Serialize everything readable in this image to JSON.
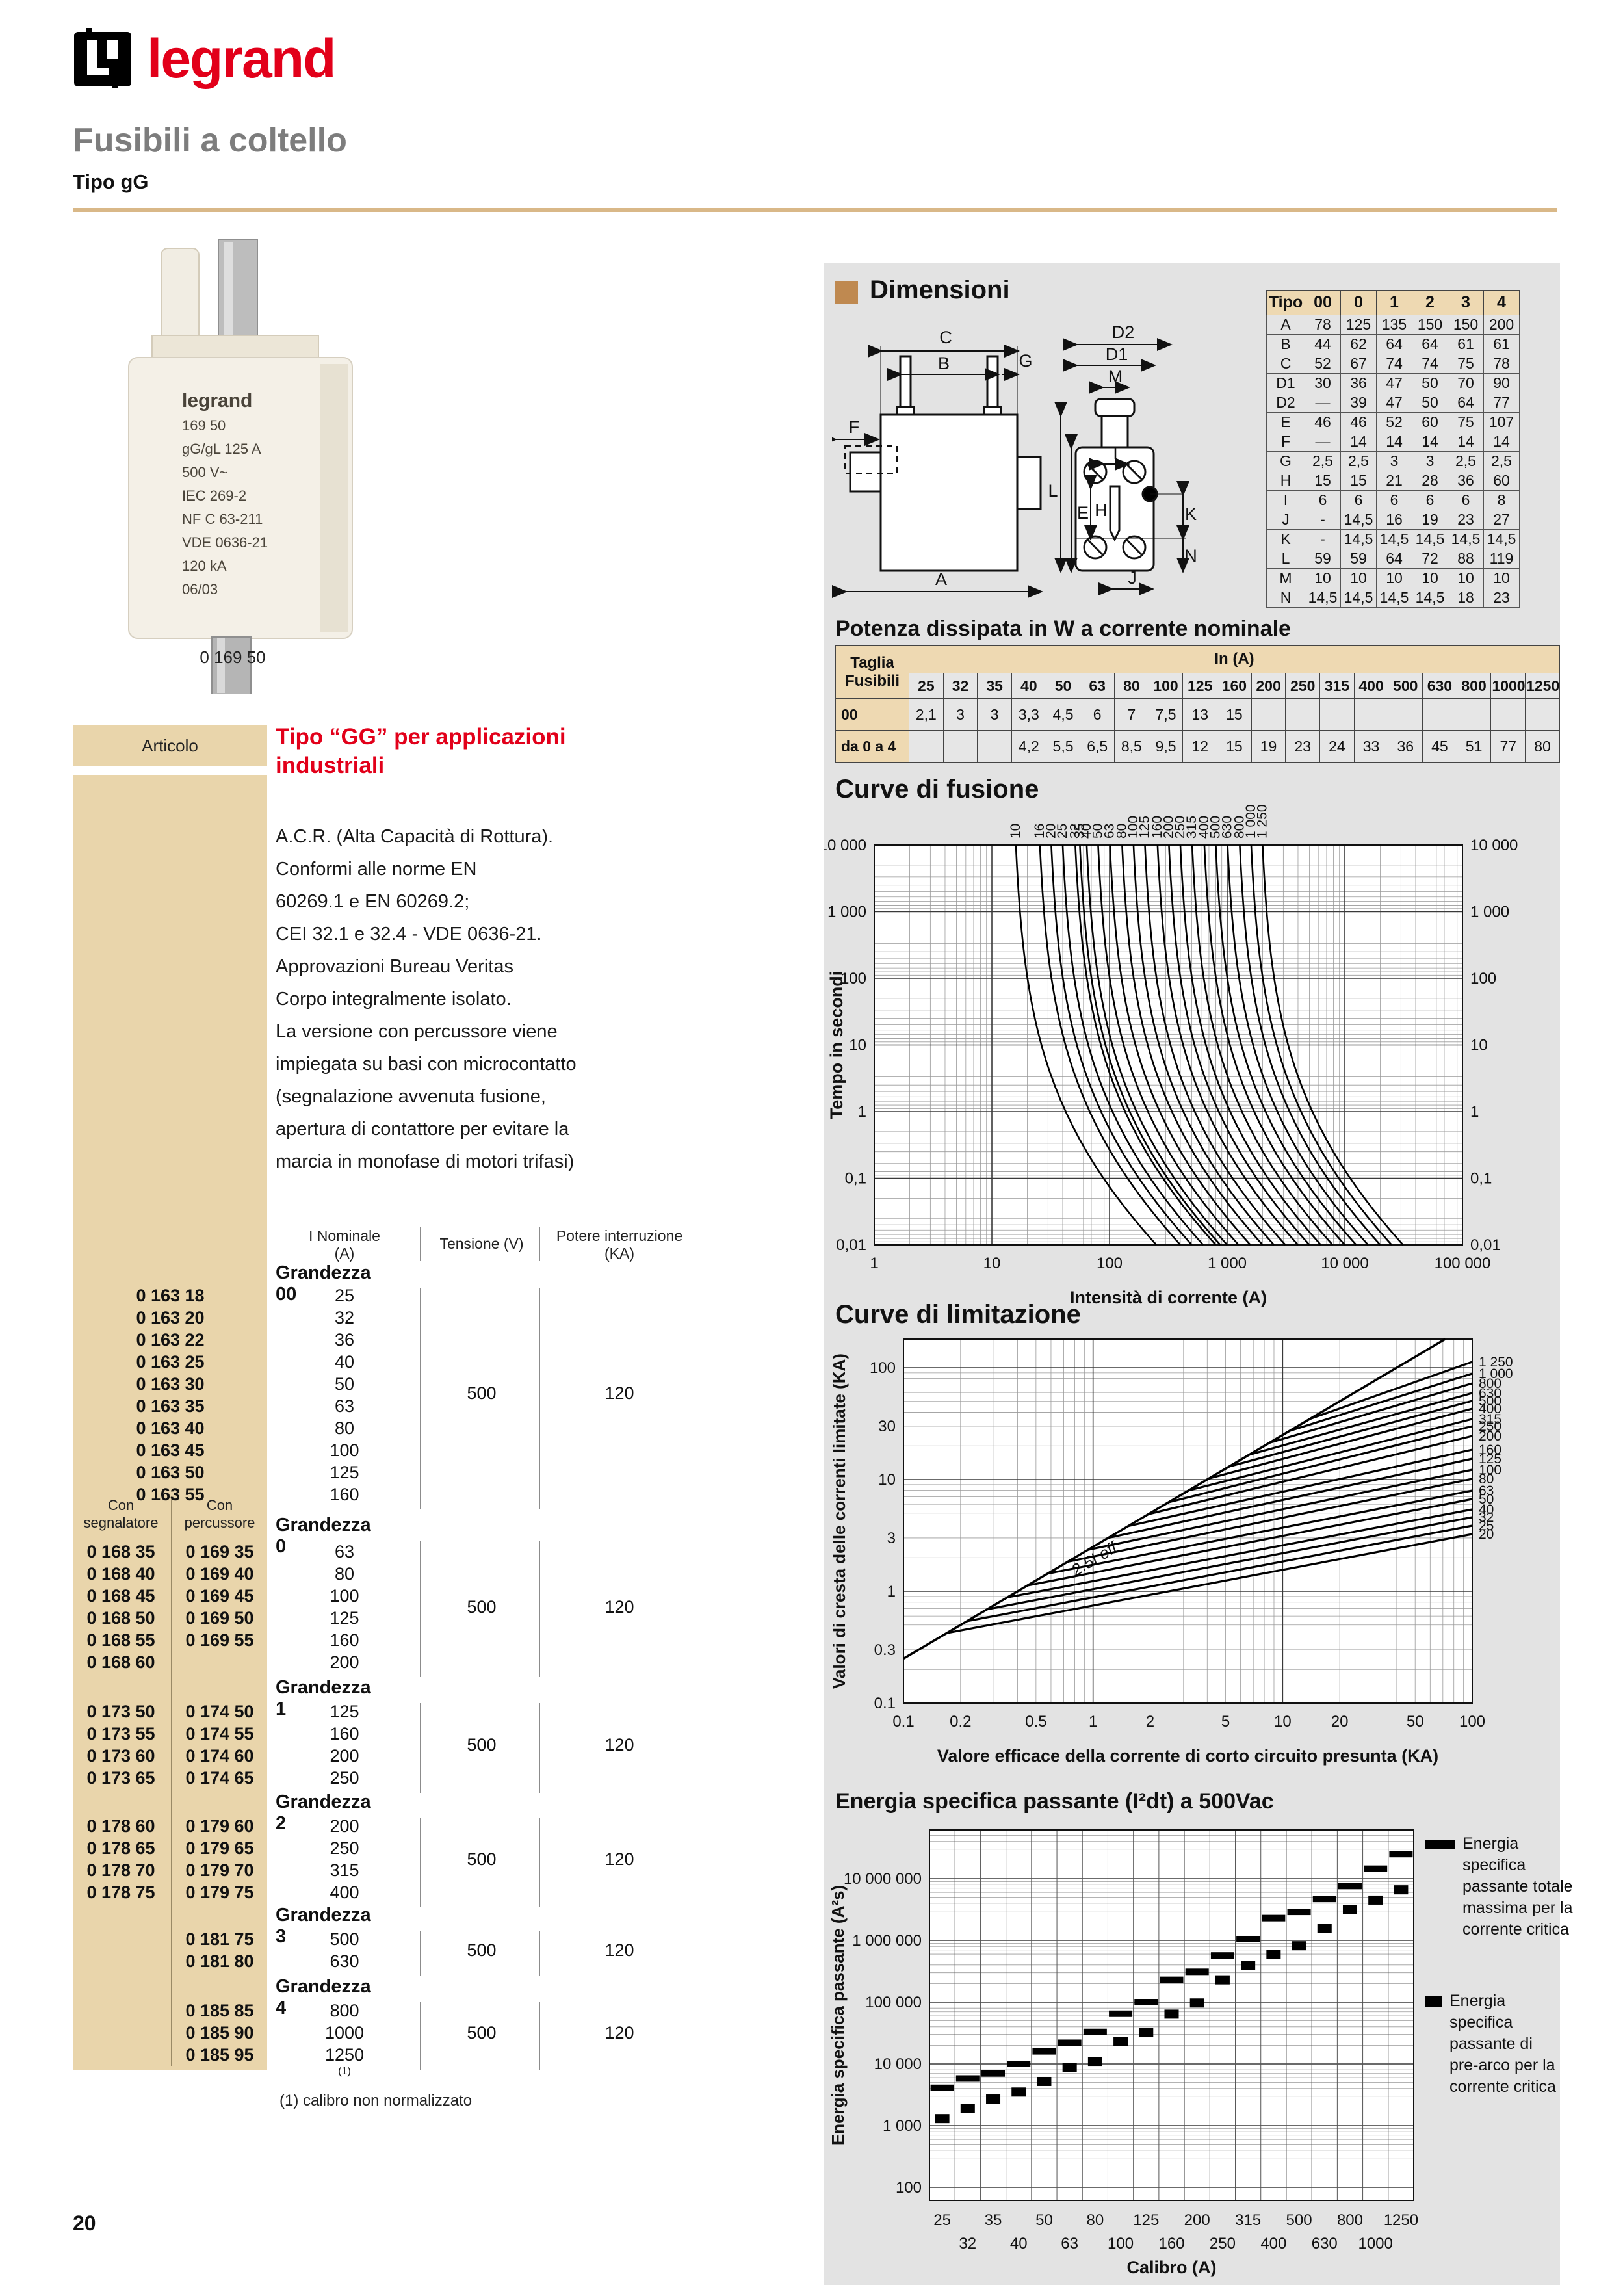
{
  "page": {
    "number": "20"
  },
  "header": {
    "brand": "legrand",
    "title": "Fusibili a coltello",
    "subtitle": "Tipo gG"
  },
  "product": {
    "caption": "0 169 50",
    "label_lines": [
      "legrand",
      "169 50",
      "gG/gL 125 A",
      "500 V~",
      "IEC 269-2",
      "NF C 63-211",
      "VDE 0636-21",
      "120 kA",
      "06/03"
    ]
  },
  "articolo": {
    "header": "Articolo",
    "heading": "Tipo “GG” per applicazioni industriali",
    "description": "A.C.R. (Alta Capacità di Rottura).\nConformi alle norme EN\n60269.1 e EN 60269.2;\nCEI 32.1 e 32.4 - VDE 0636-21.\nApprovazioni Bureau Veritas\nCorpo integralmente isolato.\nLa versione con percussore viene\nimpiegata su basi con microcontatto\n(segnalazione avvenuta fusione,\napertura di contattore per evitare la\nmarcia in monofase di motori trifasi)",
    "col_headers": {
      "nominale": "I Nominale\n(A)",
      "tensione": "Tensione (V)",
      "potere": "Potere interruzione\n(KA)"
    },
    "sub_headers": {
      "left": "Con\nsegnalatore",
      "right": "Con\npercussore"
    },
    "groups": [
      {
        "name": "Grandezza 00",
        "tensione": "500",
        "potere": "120",
        "single": true,
        "rows": [
          [
            "0 163 18",
            "",
            "25"
          ],
          [
            "0 163 20",
            "",
            "32"
          ],
          [
            "0 163 22",
            "",
            "36"
          ],
          [
            "0 163 25",
            "",
            "40"
          ],
          [
            "0 163 30",
            "",
            "50"
          ],
          [
            "0 163 35",
            "",
            "63"
          ],
          [
            "0 163 40",
            "",
            "80"
          ],
          [
            "0 163 45",
            "",
            "100"
          ],
          [
            "0 163 50",
            "",
            "125"
          ],
          [
            "0 163 55",
            "",
            "160"
          ]
        ]
      },
      {
        "name": "Grandezza 0",
        "tensione": "500",
        "potere": "120",
        "rows": [
          [
            "0 168 35",
            "0 169 35",
            "63"
          ],
          [
            "0 168 40",
            "0 169 40",
            "80"
          ],
          [
            "0 168 45",
            "0 169 45",
            "100"
          ],
          [
            "0 168 50",
            "0 169 50",
            "125"
          ],
          [
            "0 168 55",
            "0 169 55",
            "160"
          ],
          [
            "0 168 60",
            "",
            "200"
          ]
        ]
      },
      {
        "name": "Grandezza 1",
        "tensione": "500",
        "potere": "120",
        "rows": [
          [
            "0 173 50",
            "0 174 50",
            "125"
          ],
          [
            "0 173 55",
            "0 174 55",
            "160"
          ],
          [
            "0 173 60",
            "0 174 60",
            "200"
          ],
          [
            "0 173 65",
            "0 174 65",
            "250"
          ]
        ]
      },
      {
        "name": "Grandezza 2",
        "tensione": "500",
        "potere": "120",
        "rows": [
          [
            "0 178 60",
            "0 179 60",
            "200"
          ],
          [
            "0 178 65",
            "0 179 65",
            "250"
          ],
          [
            "0 178 70",
            "0 179 70",
            "315"
          ],
          [
            "0 178 75",
            "0 179 75",
            "400"
          ]
        ]
      },
      {
        "name": "Grandezza 3",
        "tensione": "500",
        "potere": "120",
        "rows": [
          [
            "",
            "0 181 75",
            "500"
          ],
          [
            "",
            "0 181 80",
            "630"
          ]
        ]
      },
      {
        "name": "Grandezza 4",
        "tensione": "500",
        "potere": "120",
        "rows": [
          [
            "",
            "0 185 85",
            "800"
          ],
          [
            "",
            "0 185 90",
            "1000"
          ],
          [
            "",
            "0 185 95",
            "1250",
            "(1)"
          ]
        ]
      }
    ],
    "footnote": "(1) calibro non normalizzato"
  },
  "dimensioni": {
    "heading": "Dimensioni",
    "front_labels": [
      "C",
      "B",
      "G",
      "F",
      "A"
    ],
    "side_labels": [
      "D2",
      "D1",
      "M",
      "L",
      "E",
      "H",
      "I",
      "K",
      "N",
      "J"
    ],
    "table": {
      "columns": [
        "Tipo",
        "00",
        "0",
        "1",
        "2",
        "3",
        "4"
      ],
      "rows": [
        [
          "A",
          "78",
          "125",
          "135",
          "150",
          "150",
          "200"
        ],
        [
          "B",
          "44",
          "62",
          "64",
          "64",
          "61",
          "61"
        ],
        [
          "C",
          "52",
          "67",
          "74",
          "74",
          "75",
          "78"
        ],
        [
          "D1",
          "30",
          "36",
          "47",
          "50",
          "70",
          "90"
        ],
        [
          "D2",
          "—",
          "39",
          "47",
          "50",
          "64",
          "77"
        ],
        [
          "E",
          "46",
          "46",
          "52",
          "60",
          "75",
          "107"
        ],
        [
          "F",
          "—",
          "14",
          "14",
          "14",
          "14",
          "14"
        ],
        [
          "G",
          "2,5",
          "2,5",
          "3",
          "3",
          "2,5",
          "2,5"
        ],
        [
          "H",
          "15",
          "15",
          "21",
          "28",
          "36",
          "60"
        ],
        [
          "I",
          "6",
          "6",
          "6",
          "6",
          "6",
          "8"
        ],
        [
          "J",
          "-",
          "14,5",
          "16",
          "19",
          "23",
          "27"
        ],
        [
          "K",
          "-",
          "14,5",
          "14,5",
          "14,5",
          "14,5",
          "14,5"
        ],
        [
          "L",
          "59",
          "59",
          "64",
          "72",
          "88",
          "119"
        ],
        [
          "M",
          "10",
          "10",
          "10",
          "10",
          "10",
          "10"
        ],
        [
          "N",
          "14,5",
          "14,5",
          "14,5",
          "14,5",
          "18",
          "23"
        ]
      ]
    }
  },
  "potenza": {
    "heading": "Potenza dissipata in W a corrente nominale",
    "taglia_label": "Taglia\nFusibili",
    "in_label": "In (A)",
    "columns": [
      "25",
      "32",
      "35",
      "40",
      "50",
      "63",
      "80",
      "100",
      "125",
      "160",
      "200",
      "250",
      "315",
      "400",
      "500",
      "630",
      "800",
      "1000",
      "1250"
    ],
    "rows": [
      {
        "label": "00",
        "values": [
          "2,1",
          "3",
          "3",
          "3,3",
          "4,5",
          "6",
          "7",
          "7,5",
          "13",
          "15",
          "",
          "",
          "",
          "",
          "",
          "",
          "",
          "",
          ""
        ]
      },
      {
        "label": "da 0 a 4",
        "values": [
          "",
          "",
          "",
          "4,2",
          "5,5",
          "6,5",
          "8,5",
          "9,5",
          "12",
          "15",
          "19",
          "23",
          "24",
          "33",
          "36",
          "45",
          "51",
          "77",
          "80"
        ]
      }
    ]
  },
  "chart_data": [
    {
      "type": "line",
      "title": "Curve di fusione",
      "xlabel": "Intensità di corrente (A)",
      "ylabel": "Tempo in secondi",
      "xscale": "log",
      "yscale": "log",
      "xlim": [
        1,
        100000
      ],
      "ylim": [
        0.01,
        10000
      ],
      "xticks": [
        "1",
        "10",
        "100",
        "1 000",
        "10 000",
        "100 000"
      ],
      "yticks": [
        "10 000",
        "1 000",
        "100",
        "10",
        "1",
        "0,1",
        "0,01"
      ],
      "grid": true,
      "curve_labels": [
        "10",
        "16",
        "20",
        "25",
        "32",
        "35",
        "40",
        "50",
        "63",
        "80",
        "100",
        "125",
        "160",
        "200",
        "250",
        "315",
        "400",
        "500",
        "630",
        "800",
        "1 000",
        "1 250"
      ]
    },
    {
      "type": "line",
      "title": "Curve di limitazione",
      "xlabel": "Valore efficace della corrente di corto circuito presunta (KA)",
      "ylabel": "Valori di cresta delle correnti limitate (KA)",
      "xscale": "log",
      "yscale": "log",
      "xlim": [
        0.1,
        100
      ],
      "ylim": [
        0.1,
        180
      ],
      "xticks": [
        "0.1",
        "0.2",
        "0.5",
        "1",
        "2",
        "5",
        "10",
        "20",
        "50",
        "100"
      ],
      "yticks": [
        "0.1",
        "0.3",
        "1",
        "3",
        "10",
        "30",
        "100"
      ],
      "grid": true,
      "diagonal_label": "2.5I eff",
      "curve_labels": [
        "1 250",
        "1 000",
        "800",
        "630",
        "500",
        "400",
        "315",
        "250",
        "200",
        "160",
        "125",
        "100",
        "80",
        "63",
        "50",
        "40",
        "32",
        "25",
        "20"
      ]
    },
    {
      "type": "scatter",
      "title": "Energia specifica passante (I²dt) a 500Vac",
      "xlabel": "Calibro (A)",
      "ylabel": "Energia specifica passante (A²s)",
      "yscale": "log",
      "yticks": [
        "100",
        "1 000",
        "10 000",
        "100 000",
        "1 000 000",
        "10 000 000"
      ],
      "categories": [
        "25",
        "32",
        "35",
        "40",
        "50",
        "63",
        "80",
        "100",
        "125",
        "160",
        "200",
        "250",
        "315",
        "400",
        "500",
        "630",
        "800",
        "1000",
        "1250"
      ],
      "series": [
        {
          "name": "Energia specifica passante totale massima per la corrente critica",
          "marker": "dash",
          "values": [
            4100,
            5800,
            7000,
            10000,
            16000,
            22000,
            33000,
            65000,
            100000,
            230000,
            310000,
            570000,
            1050000,
            2300000,
            2900000,
            4700000,
            7600000,
            14500000,
            25000000
          ]
        },
        {
          "name": "Energia specifica passante di pre-arco per la corrente critica",
          "marker": "square",
          "values": [
            1300,
            1900,
            2700,
            3500,
            5200,
            8800,
            11000,
            23000,
            32000,
            64000,
            97000,
            230000,
            390000,
            590000,
            820000,
            1550000,
            3200000,
            4500000,
            6600000
          ]
        }
      ]
    }
  ]
}
